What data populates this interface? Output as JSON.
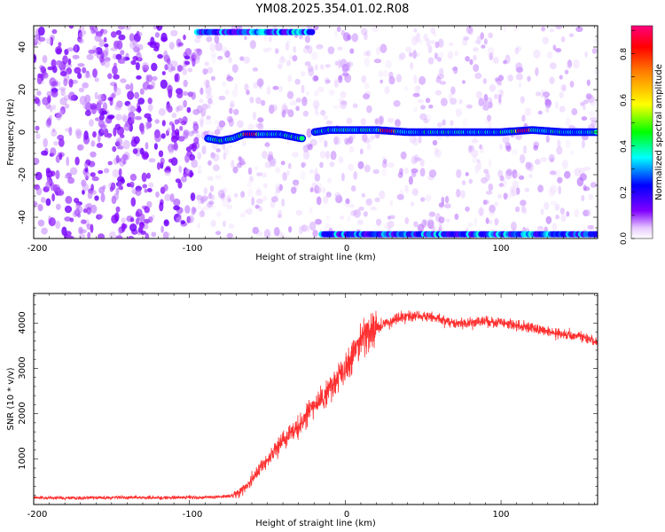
{
  "title": "YM08.2025.354.01.02.R08",
  "chart_data": [
    {
      "type": "heatmap",
      "xlabel": "Height of straight line (km)",
      "ylabel": "Frequency (Hz)",
      "xlim": [
        -200,
        162
      ],
      "ylim": [
        -50,
        50
      ],
      "xticks": [
        "-200",
        "-100",
        "0",
        "100"
      ],
      "yticks": [
        "-40",
        "-20",
        "0",
        "20",
        "40"
      ],
      "colorbar": {
        "label": "Normalized spectral amplitude",
        "range": [
          0,
          0.92
        ],
        "ticks": [
          "0.0",
          "0.2",
          "0.4",
          "0.6",
          "0.8"
        ]
      },
      "trace": [
        {
          "x": -88,
          "y": -3
        },
        {
          "x": -80,
          "y": -4
        },
        {
          "x": -72,
          "y": -3
        },
        {
          "x": -65,
          "y": -1
        },
        {
          "x": -58,
          "y": -1
        },
        {
          "x": -50,
          "y": -1
        },
        {
          "x": -42,
          "y": -1
        },
        {
          "x": -35,
          "y": -2
        },
        {
          "x": -28,
          "y": -3
        },
        {
          "x": -20,
          "y": 0
        },
        {
          "x": -10,
          "y": 1
        },
        {
          "x": 0,
          "y": 1
        },
        {
          "x": 20,
          "y": 1
        },
        {
          "x": 40,
          "y": 0
        },
        {
          "x": 60,
          "y": 0
        },
        {
          "x": 80,
          "y": 0
        },
        {
          "x": 100,
          "y": 0
        },
        {
          "x": 120,
          "y": 1
        },
        {
          "x": 140,
          "y": 0
        },
        {
          "x": 162,
          "y": 0
        }
      ],
      "edge_bands": [
        {
          "x": [
            -95,
            -20
          ],
          "y": 47
        },
        {
          "x": [
            -15,
            162
          ],
          "y": -48
        }
      ],
      "peaks": [
        {
          "x": -60,
          "y": -1,
          "amp": 0.85
        },
        {
          "x": 28,
          "y": 1,
          "amp": 0.9
        },
        {
          "x": 115,
          "y": 1,
          "amp": 0.88
        }
      ]
    },
    {
      "type": "line",
      "xlabel": "Height of straight line (km)",
      "ylabel": "SNR (10 * v/v)",
      "xlim": [
        -200,
        162
      ],
      "ylim": [
        0,
        4650
      ],
      "xticks": [
        "-200",
        "-100",
        "0",
        "100"
      ],
      "yticks": [
        "1000",
        "2000",
        "3000",
        "4000"
      ],
      "series": [
        {
          "color": "#ff3030",
          "x": [
            -200,
            -180,
            -160,
            -140,
            -120,
            -100,
            -90,
            -80,
            -72,
            -65,
            -60,
            -50,
            -40,
            -30,
            -20,
            -10,
            0,
            10,
            20,
            30,
            40,
            50,
            60,
            70,
            80,
            90,
            100,
            110,
            120,
            130,
            140,
            150,
            162
          ],
          "y": [
            150,
            140,
            150,
            160,
            150,
            150,
            160,
            170,
            200,
            330,
            550,
            1000,
            1400,
            1750,
            2150,
            2550,
            3000,
            3650,
            3900,
            4050,
            4150,
            4150,
            4100,
            4000,
            4000,
            4050,
            4000,
            3950,
            3900,
            3800,
            3750,
            3700,
            3600
          ]
        }
      ]
    }
  ]
}
